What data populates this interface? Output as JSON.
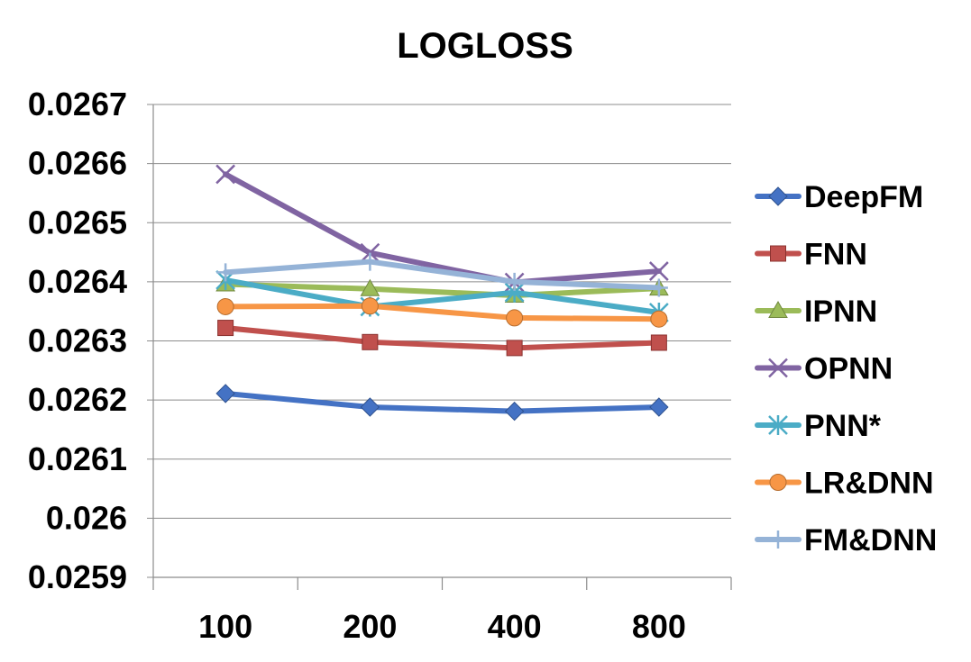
{
  "chart_data": {
    "type": "line",
    "title": "LOGLOSS",
    "xlabel": "",
    "ylabel": "",
    "categories": [
      "100",
      "200",
      "400",
      "800"
    ],
    "ylim": [
      0.0259,
      0.0267
    ],
    "yticks": [
      "0.0259",
      "0.026",
      "0.0261",
      "0.0262",
      "0.0263",
      "0.0264",
      "0.0265",
      "0.0266",
      "0.0267"
    ],
    "ytick_values": [
      0.0259,
      0.026,
      0.0261,
      0.0262,
      0.0263,
      0.0264,
      0.0265,
      0.0266,
      0.0267
    ],
    "grid": true,
    "legend_position": "right",
    "series": [
      {
        "name": "DeepFM",
        "color": "#4472C4",
        "marker": "diamond",
        "values": [
          0.026211,
          0.026188,
          0.026181,
          0.026188
        ]
      },
      {
        "name": "FNN",
        "color": "#C0504D",
        "marker": "square",
        "values": [
          0.026322,
          0.026298,
          0.026288,
          0.026297
        ]
      },
      {
        "name": "IPNN",
        "color": "#9BBB59",
        "marker": "triangle",
        "values": [
          0.026396,
          0.026388,
          0.026377,
          0.026389
        ]
      },
      {
        "name": "OPNN",
        "color": "#8064A2",
        "marker": "x",
        "values": [
          0.026582,
          0.026449,
          0.026399,
          0.026418
        ]
      },
      {
        "name": "PNN*",
        "color": "#4BACC6",
        "marker": "star",
        "values": [
          0.026403,
          0.026358,
          0.026382,
          0.026348
        ]
      },
      {
        "name": "LR&DNN",
        "color": "#F79646",
        "marker": "circle",
        "values": [
          0.026358,
          0.026359,
          0.026339,
          0.026337
        ]
      },
      {
        "name": "FM&DNN",
        "color": "#95B3D7",
        "marker": "plus",
        "values": [
          0.026416,
          0.026434,
          0.0264,
          0.02639
        ]
      }
    ]
  }
}
